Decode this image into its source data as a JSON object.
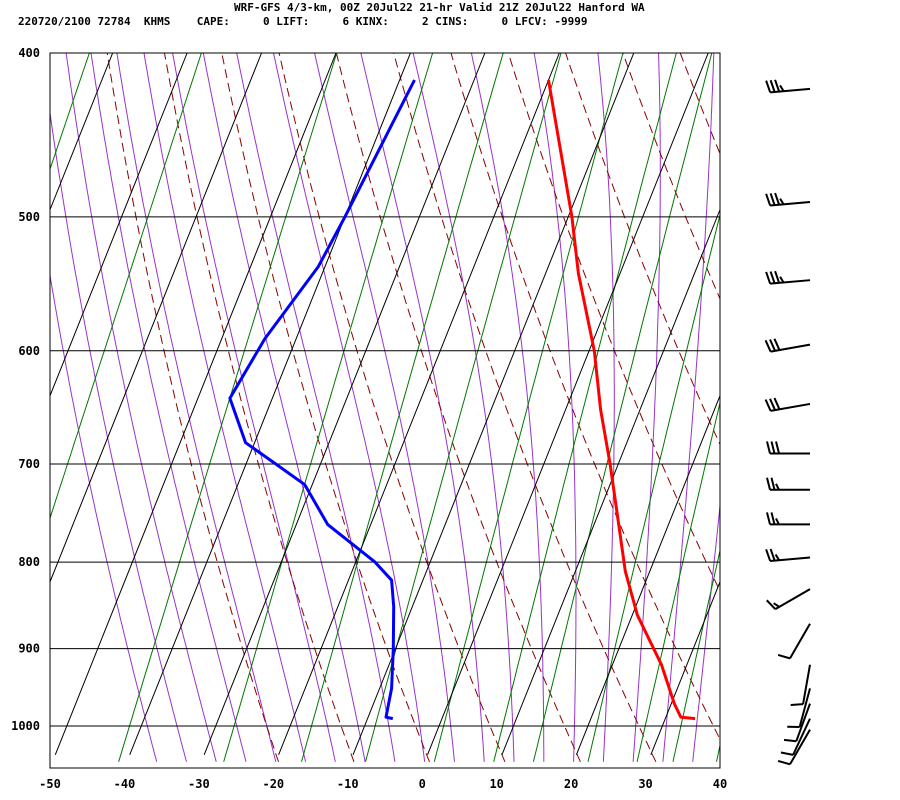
{
  "header": {
    "line1": "WRF-GFS 4/3-km, 00Z 20Jul22 21-hr Valid 21Z 20Jul22 Hanford WA",
    "line2": "220720/2100 72784  KHMS    CAPE:     0 LIFT:     6 KINX:     2 CINS:     0 LFCV: -9999"
  },
  "chart_data": {
    "type": "skew-t",
    "title": "WRF-GFS 4/3-km, 00Z 20Jul22 21-hr Valid 21Z 20Jul22 Hanford WA",
    "subtitle": "220720/2100 72784  KHMS    CAPE:     0 LIFT:     6 KINX:     2 CINS:     0 LFCV: -9999",
    "xlabel": "",
    "ylabel": "",
    "x_ticks": [
      "-50",
      "-40",
      "-30",
      "-20",
      "-10",
      "0",
      "10",
      "20",
      "30",
      "40"
    ],
    "y_ticks": [
      "400",
      "500",
      "600",
      "700",
      "800",
      "900",
      "1000"
    ],
    "x_range": [
      -50,
      40
    ],
    "y_range": [
      1040,
      400
    ],
    "y_scale": "log",
    "grid": true,
    "colors": {
      "temperature": "#ff0000",
      "dewpoint": "#0000ff",
      "isotherm": "#000000",
      "dry_adiabat": "#8b0000",
      "moist_adiabat": "#9933cc",
      "mixing_ratio": "#007700",
      "wind_barb": "#000000"
    },
    "temperature": [
      {
        "p": 415,
        "t": -20
      },
      {
        "p": 500,
        "t": -9.5
      },
      {
        "p": 540,
        "t": -5.6
      },
      {
        "p": 600,
        "t": 0.7
      },
      {
        "p": 650,
        "t": 4.7
      },
      {
        "p": 700,
        "t": 8.9
      },
      {
        "p": 760,
        "t": 13.3
      },
      {
        "p": 810,
        "t": 16.7
      },
      {
        "p": 860,
        "t": 20.7
      },
      {
        "p": 920,
        "t": 26.6
      },
      {
        "p": 970,
        "t": 30.4
      },
      {
        "p": 988,
        "t": 32.0
      },
      {
        "p": 990,
        "t": 34.0
      }
    ],
    "dewpoint": [
      {
        "p": 415,
        "td": -38
      },
      {
        "p": 500,
        "td": -40
      },
      {
        "p": 535,
        "td": -40.9
      },
      {
        "p": 590,
        "td": -44.2
      },
      {
        "p": 640,
        "td": -45.7
      },
      {
        "p": 680,
        "td": -41.2
      },
      {
        "p": 700,
        "td": -36
      },
      {
        "p": 720,
        "td": -31
      },
      {
        "p": 760,
        "td": -25.8
      },
      {
        "p": 800,
        "td": -17.4
      },
      {
        "p": 820,
        "td": -14.2
      },
      {
        "p": 850,
        "td": -12.5
      },
      {
        "p": 900,
        "td": -10.3
      },
      {
        "p": 950,
        "td": -8.4
      },
      {
        "p": 988,
        "td": -7.6
      },
      {
        "p": 990,
        "td": -6.6
      }
    ],
    "wind_barbs": [
      {
        "p": 420,
        "dir": 265,
        "speed": 35
      },
      {
        "p": 490,
        "dir": 265,
        "speed": 35
      },
      {
        "p": 545,
        "dir": 265,
        "speed": 35
      },
      {
        "p": 595,
        "dir": 260,
        "speed": 30
      },
      {
        "p": 645,
        "dir": 260,
        "speed": 30
      },
      {
        "p": 690,
        "dir": 270,
        "speed": 30
      },
      {
        "p": 725,
        "dir": 270,
        "speed": 25
      },
      {
        "p": 760,
        "dir": 270,
        "speed": 25
      },
      {
        "p": 795,
        "dir": 265,
        "speed": 25
      },
      {
        "p": 830,
        "dir": 240,
        "speed": 15
      },
      {
        "p": 870,
        "dir": 210,
        "speed": 10
      },
      {
        "p": 920,
        "dir": 190,
        "speed": 10
      },
      {
        "p": 950,
        "dir": 195,
        "speed": 10
      },
      {
        "p": 970,
        "dir": 200,
        "speed": 10
      },
      {
        "p": 990,
        "dir": 205,
        "speed": 10
      },
      {
        "p": 1005,
        "dir": 210,
        "speed": 10
      }
    ]
  }
}
